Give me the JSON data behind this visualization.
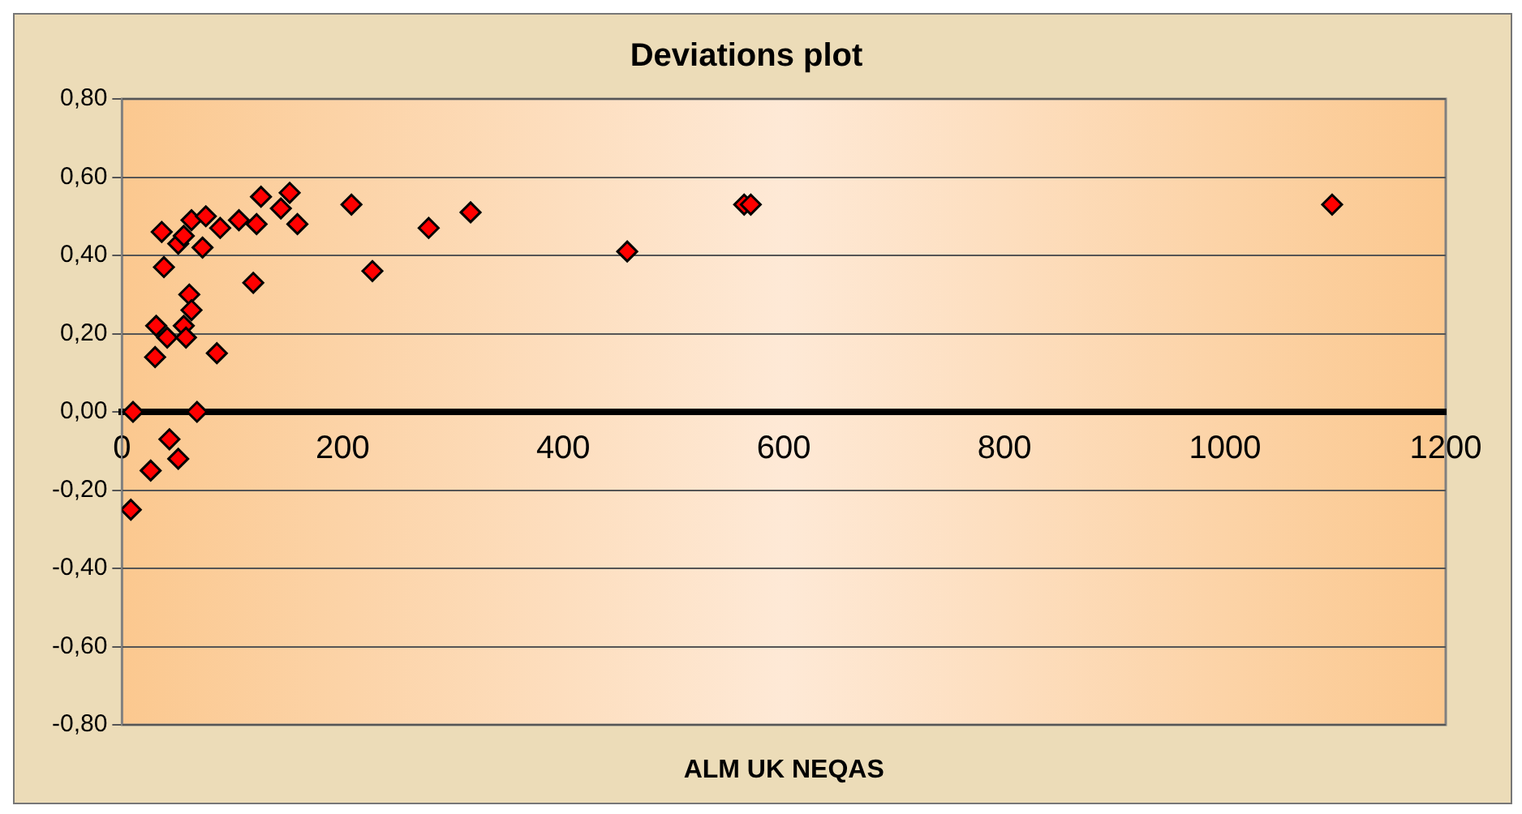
{
  "chart_data": {
    "type": "scatter",
    "title": "Deviations plot",
    "xlabel": "ALM UK NEQAS",
    "x": [
      8,
      10,
      26,
      43,
      51,
      68,
      36,
      38,
      61,
      63,
      31,
      41,
      56,
      58,
      30,
      86,
      51,
      56,
      63,
      73,
      76,
      89,
      106,
      122,
      126,
      119,
      144,
      152,
      159,
      208,
      227,
      278,
      316,
      458,
      564,
      570,
      1097
    ],
    "series": [
      {
        "color": "#ff0000",
        "values": [
          -0.25,
          0.0,
          -0.15,
          -0.07,
          -0.12,
          0.0,
          0.46,
          0.37,
          0.3,
          0.26,
          0.22,
          0.19,
          0.22,
          0.19,
          0.14,
          0.15,
          0.43,
          0.45,
          0.49,
          0.42,
          0.5,
          0.47,
          0.49,
          0.48,
          0.55,
          0.33,
          0.52,
          0.56,
          0.48,
          0.53,
          0.36,
          0.47,
          0.51,
          0.41,
          0.53,
          0.53,
          0.53
        ]
      }
    ],
    "xlim": [
      0,
      1200
    ],
    "xticks": [
      0,
      200,
      400,
      600,
      800,
      1000,
      1200
    ],
    "ylim": [
      -0.8,
      0.8
    ],
    "yticks": [
      {
        "value": -0.8,
        "label": "-0,80"
      },
      {
        "value": -0.6,
        "label": "-0,60"
      },
      {
        "value": -0.4,
        "label": "-0,40"
      },
      {
        "value": -0.2,
        "label": "-0,20"
      },
      {
        "value": 0,
        "label": "0,00"
      },
      {
        "value": 0.2,
        "label": "0,20"
      },
      {
        "value": 0.4,
        "label": "0,40"
      },
      {
        "value": 0.6,
        "label": "0,60"
      },
      {
        "value": 0.8,
        "label": "0,80"
      }
    ],
    "grid": "y",
    "marker": "diamond",
    "legend": false
  }
}
